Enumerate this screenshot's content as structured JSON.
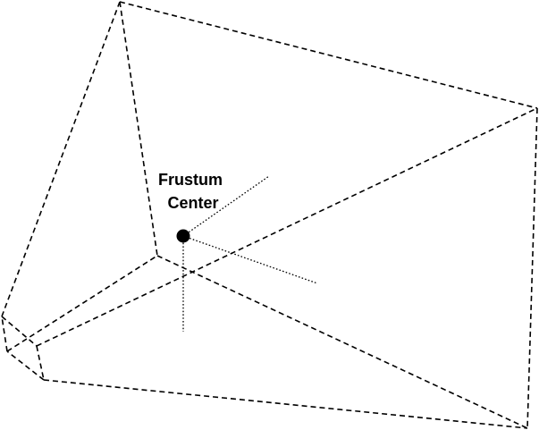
{
  "diagram": {
    "label_line1": "Frustum",
    "label_line2": "Center",
    "stroke_color": "#000000",
    "background_color": "#ffffff"
  }
}
